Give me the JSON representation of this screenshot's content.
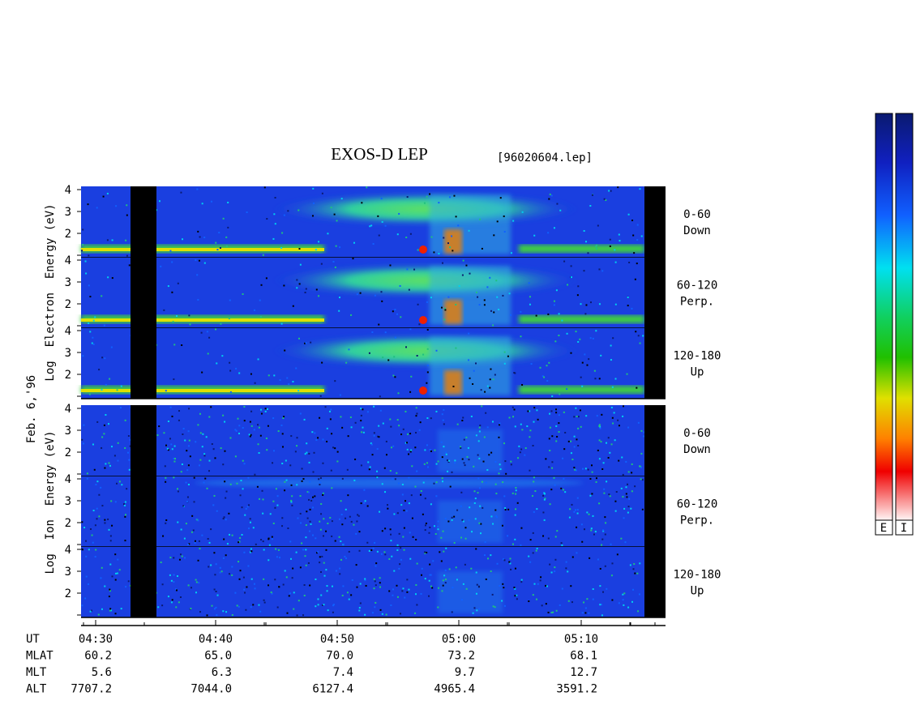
{
  "header": {
    "title": "EXOS-D LEP",
    "file": "[96020604.lep]"
  },
  "y_axis": {
    "electron": "Log  Electron  Energy (eV)",
    "ion": "Log  Ion  Energy (eV)",
    "date": "Feb. 6,'96",
    "tick_labels": [
      "2",
      "3",
      "4"
    ]
  },
  "panels": [
    {
      "angle": "0-60",
      "direction": "Down"
    },
    {
      "angle": "60-120",
      "direction": "Perp."
    },
    {
      "angle": "120-180",
      "direction": "Up"
    }
  ],
  "footer": {
    "rows": [
      {
        "label": "UT",
        "values": [
          "04:30",
          "04:40",
          "04:50",
          "05:00",
          "05:10"
        ]
      },
      {
        "label": "MLAT",
        "values": [
          "60.2",
          "65.0",
          "70.0",
          "73.2",
          "68.1"
        ]
      },
      {
        "label": "MLT",
        "values": [
          "5.6",
          "6.3",
          "7.4",
          "9.7",
          "12.7"
        ]
      },
      {
        "label": "ALT",
        "values": [
          "7707.2",
          "7044.0",
          "6127.4",
          "4965.4",
          "3591.2"
        ]
      }
    ]
  },
  "colorbar": {
    "labels": [
      "E",
      "I"
    ]
  }
}
